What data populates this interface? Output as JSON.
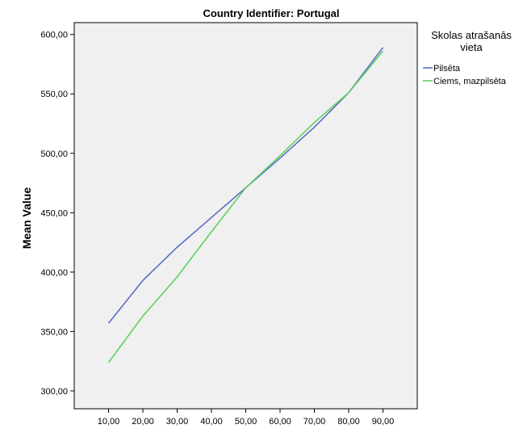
{
  "chart_data": {
    "type": "line",
    "title": "Country Identifier: Portugal",
    "xlabel": "",
    "ylabel": "Mean Value",
    "x": [
      "10,00",
      "20,00",
      "30,00",
      "40,00",
      "50,00",
      "60,00",
      "70,00",
      "80,00",
      "90,00"
    ],
    "x_values": [
      10,
      20,
      30,
      40,
      50,
      60,
      70,
      80,
      90
    ],
    "xlim": [
      0,
      100
    ],
    "ylim": [
      285,
      610
    ],
    "yticks": [
      300,
      350,
      400,
      450,
      500,
      550,
      600
    ],
    "ytick_labels": [
      "300,00",
      "350,00",
      "400,00",
      "450,00",
      "500,00",
      "550,00",
      "600,00"
    ],
    "grid": false,
    "plot_background": "#f0f0f0",
    "legend": {
      "title": "Skolas atrašanās vieta",
      "placement": "right"
    },
    "series": [
      {
        "name": "Pilsēta",
        "color": "#5b6dc8",
        "values": [
          357,
          393,
          421,
          446,
          471,
          496,
          522,
          551,
          589
        ]
      },
      {
        "name": "Ciems, mazpilsēta",
        "color": "#5ed05e",
        "values": [
          324,
          363,
          396,
          434,
          471,
          498,
          526,
          551,
          586
        ]
      }
    ]
  }
}
